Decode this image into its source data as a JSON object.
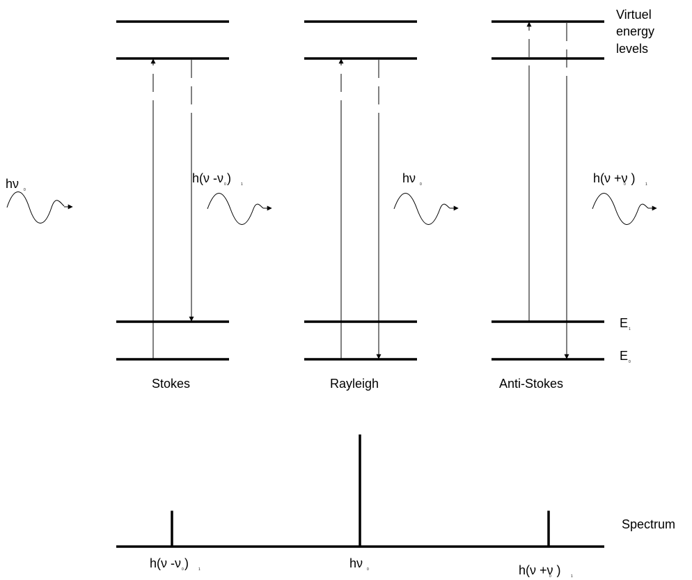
{
  "labels": {
    "virtual": [
      "Virtuel",
      "energy",
      "levels"
    ],
    "e1": "E",
    "e0": "E",
    "stokes": "Stokes",
    "rayleigh": "Rayleigh",
    "anti_stokes": "Anti-Stokes",
    "spectrum": "Spectrum"
  },
  "photons": {
    "incident": "hν",
    "stokes": "h(ν -ν )",
    "rayleigh": "hν",
    "anti_stokes": "h(ν +ν )"
  },
  "spectrum_labels": {
    "stokes": "h(ν -ν )",
    "rayleigh": "hν",
    "anti_stokes": "h(ν +ν )"
  },
  "spectrum_relative_intensity": {
    "stokes": 0.32,
    "rayleigh": 1.0,
    "anti_stokes": 0.32
  }
}
